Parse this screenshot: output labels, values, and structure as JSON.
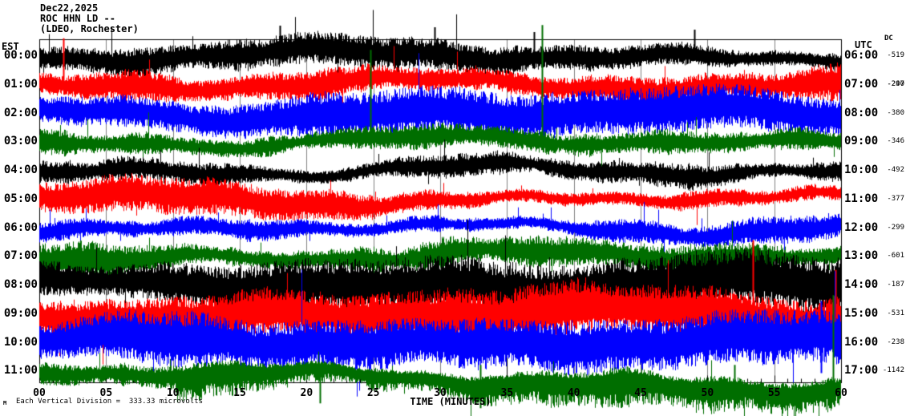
{
  "header": {
    "date": "Dec22,2025",
    "station": "ROC HHN LD --",
    "network": "(LDEO, Rochester)"
  },
  "axes": {
    "left_label": "EST",
    "right_label": "UTC",
    "dc_label": "DC",
    "x_tick_labels": [
      "00",
      "05",
      "10",
      "15",
      "20",
      "25",
      "30",
      "35",
      "40",
      "45",
      "50",
      "55",
      "60"
    ],
    "x_title": "TIME (MINUTES)"
  },
  "footer": {
    "scale_note": "Each Vertical Division =  333.33 microvolts",
    "corner_mark": "M"
  },
  "colors": {
    "background": "#ffffff",
    "frame": "#000000",
    "grid": "#808080",
    "black_trace": "#000000",
    "red_trace": "#ff0000",
    "blue_trace": "#0000ff",
    "green_trace": "#006e00"
  },
  "chart_data": {
    "type": "line",
    "subtype": "seismogram-helicorder",
    "station": "ROC HHN LD",
    "date": "Dec22,2025",
    "minutes_per_line": 60,
    "x_range": [
      0,
      60
    ],
    "grid_interval_minutes": 5,
    "vertical_division_microvolts": 333.33,
    "legend_position": "none",
    "grid": true,
    "rows": [
      {
        "est": "00:00",
        "utc": "06:00",
        "color": "#000000",
        "dc": -519,
        "amp": 15,
        "spikes": [
          [
            18,
            38,
            6
          ],
          [
            29.6,
            36,
            6
          ],
          [
            37,
            30,
            6
          ],
          [
            49,
            33,
            6
          ]
        ]
      },
      {
        "est": "01:00",
        "utc": "07:00",
        "color": "#ff0000",
        "dc": -247,
        "dc_overlap": -290,
        "amp": 17,
        "spikes": [
          [
            1.8,
            58,
            8
          ]
        ]
      },
      {
        "est": "02:00",
        "utc": "08:00",
        "color": "#0000ff",
        "dc": -380,
        "amp": 16,
        "spikes": []
      },
      {
        "est": "03:00",
        "utc": "09:00",
        "color": "#006e00",
        "dc": -346,
        "amp": 15,
        "spikes": [
          [
            24.8,
            115,
            8
          ],
          [
            37.6,
            146,
            10
          ]
        ]
      },
      {
        "est": "04:00",
        "utc": "10:00",
        "color": "#000000",
        "dc": -492,
        "amp": 16,
        "spikes": []
      },
      {
        "est": "05:00",
        "utc": "11:00",
        "color": "#ff0000",
        "dc": -377,
        "amp": 17,
        "spikes": []
      },
      {
        "est": "06:00",
        "utc": "12:00",
        "color": "#0000ff",
        "dc": -299,
        "amp": 16,
        "spikes": []
      },
      {
        "est": "07:00",
        "utc": "13:00",
        "color": "#006e00",
        "dc": -601,
        "amp": 22,
        "spikes": []
      },
      {
        "est": "08:00",
        "utc": "14:00",
        "color": "#000000",
        "dc": -187,
        "amp": 20,
        "spikes": []
      },
      {
        "est": "09:00",
        "utc": "15:00",
        "color": "#ff0000",
        "dc": -531,
        "amp": 19,
        "spikes": [
          [
            53.4,
            92,
            12
          ],
          [
            59.6,
            55,
            12
          ]
        ]
      },
      {
        "est": "10:00",
        "utc": "16:00",
        "color": "#0000ff",
        "dc": -238,
        "amp": 19,
        "spikes": [
          [
            58.5,
            52,
            38
          ]
        ]
      },
      {
        "est": "11:00",
        "utc": "17:00",
        "color": "#006e00",
        "dc": -1142,
        "amp": 16,
        "up_scale": 0.75,
        "down_bias": 1.9,
        "drift": 16,
        "spikes": [
          [
            59.4,
            95,
            30
          ],
          [
            21,
            6,
            40
          ],
          [
            33,
            8,
            46
          ],
          [
            44,
            6,
            42
          ],
          [
            52,
            8,
            44
          ]
        ]
      }
    ]
  }
}
